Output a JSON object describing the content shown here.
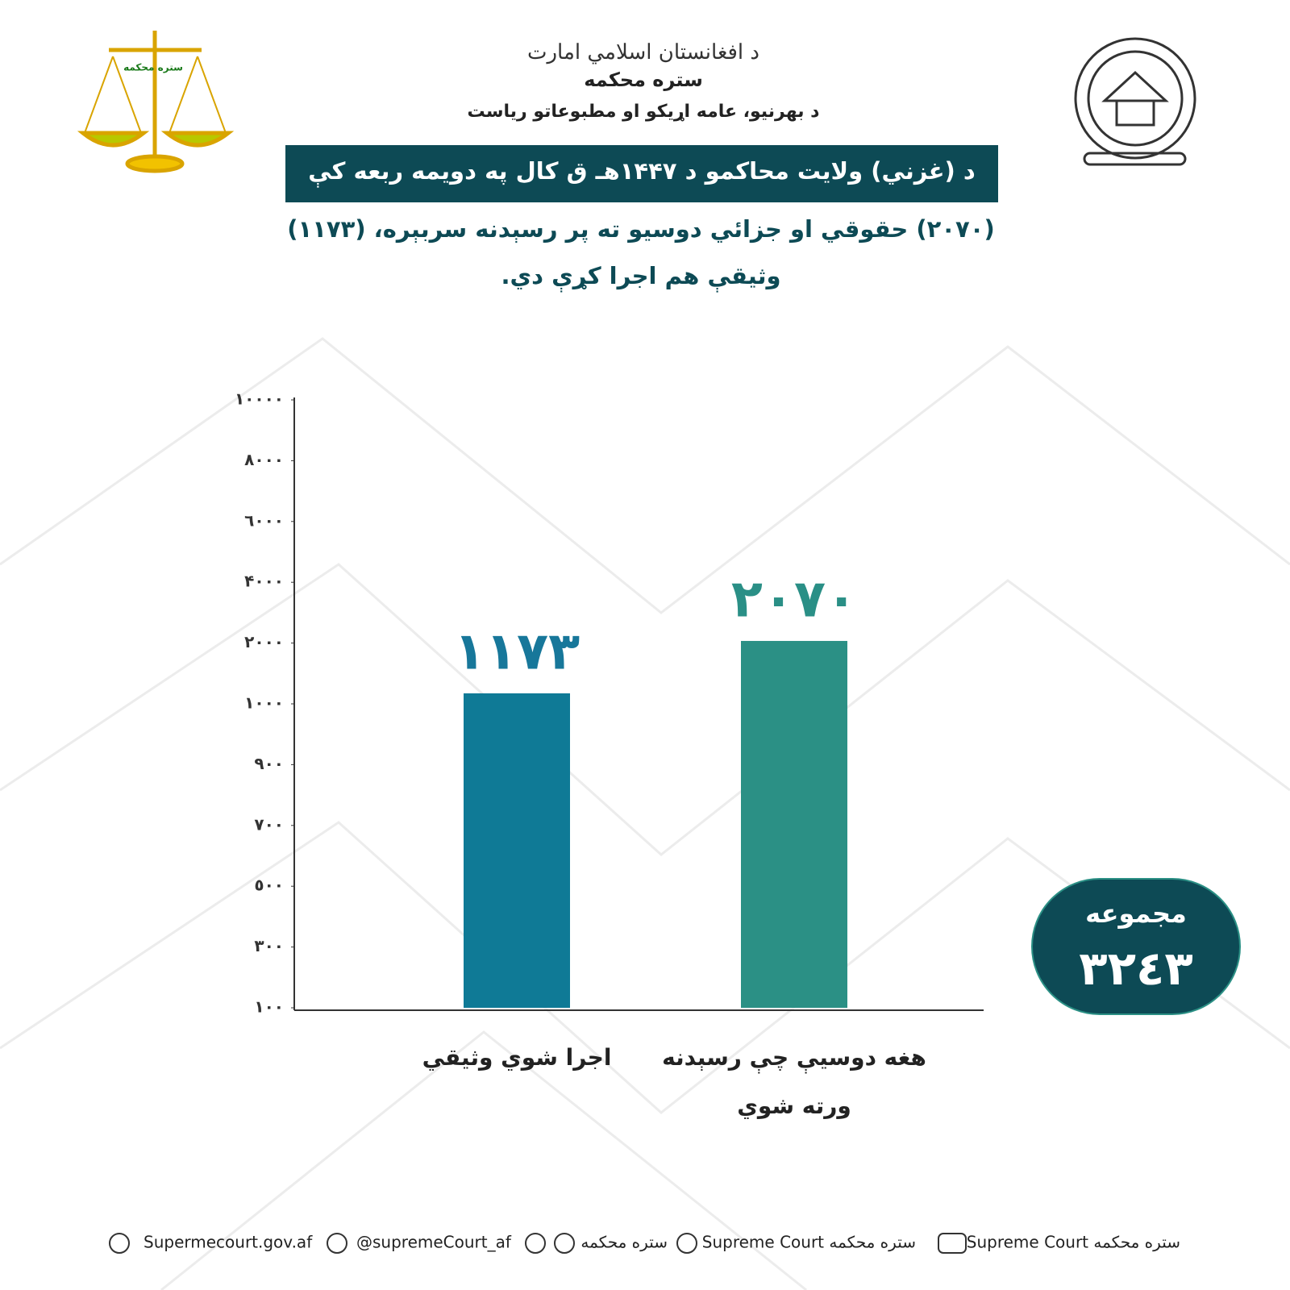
{
  "header": {
    "emirate": "د افغانستان اسلامي امارت",
    "court": "ستره محکمه",
    "department": "د بهرنیو، عامه اړیکو او مطبوعاتو ریاست",
    "logo_text": "ستره محکمه"
  },
  "chart_data": {
    "type": "bar",
    "title": "د (غزني) ولایت محاکمو د ۱۴۴۷هـ ق کال په دویمه ربعه کې",
    "subtitle": "(۲۰۷۰) حقوقي او جزائي دوسیو ته پر رسېدنه سربېره، (۱۱۷۳) وثیقې هم اجرا کړې دي.",
    "categories": [
      "اجرا شوي وثيقي",
      "هغه دوسيې چې رسېدنه ورته شوي"
    ],
    "values": [
      1173,
      2070
    ],
    "value_labels": [
      "١١٧٣",
      "٢٠٧٠"
    ],
    "colors": [
      "#0f7a96",
      "#2b9085"
    ],
    "label_colors": [
      "#17779a",
      "#2a8f86"
    ],
    "ylim": [
      100,
      10000
    ],
    "yticks": [
      {
        "value": 100,
        "label": "١٠٠"
      },
      {
        "value": 300,
        "label": "٣٠٠"
      },
      {
        "value": 500,
        "label": "٥٠٠"
      },
      {
        "value": 700,
        "label": "٧٠٠"
      },
      {
        "value": 900,
        "label": "٩٠٠"
      },
      {
        "value": 1000,
        "label": "١٠٠٠"
      },
      {
        "value": 2000,
        "label": "٢٠٠٠"
      },
      {
        "value": 4000,
        "label": "۴٠٠٠"
      },
      {
        "value": 6000,
        "label": "٦٠٠٠"
      },
      {
        "value": 8000,
        "label": "٨٠٠٠"
      },
      {
        "value": 10000,
        "label": "١٠٠٠٠"
      }
    ],
    "grid": false,
    "total_title": "مجموعه",
    "total_text": "٣٢٤٣"
  },
  "footer": {
    "website": "Supermecourt.gov.af",
    "x": "@supremeCourt_af",
    "messaging": "ستره محکمه",
    "facebook": "Supreme Court ستره محکمه",
    "youtube": "Supreme Court ستره محکمه"
  }
}
